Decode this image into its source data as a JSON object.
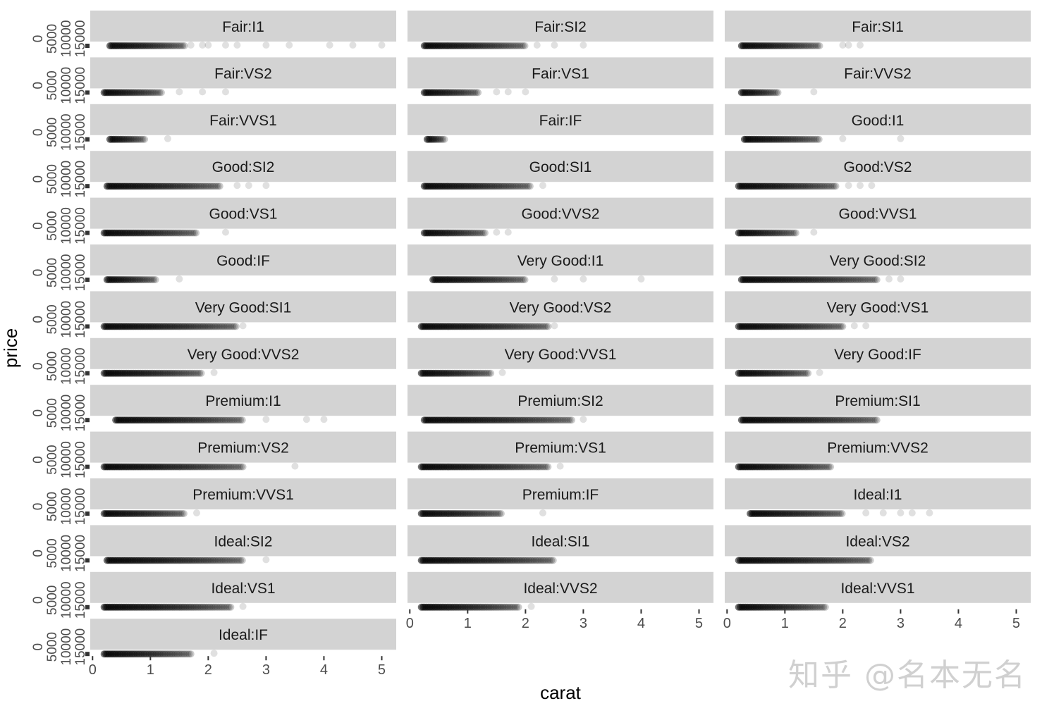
{
  "chart_data": {
    "type": "scatter",
    "facet": "cut:clarity",
    "ncol": 3,
    "xlabel": "carat",
    "ylabel": "price",
    "xlim": [
      -0.04,
      5.25
    ],
    "ylim": [
      0,
      19000
    ],
    "x_ticks": [
      "0",
      "1",
      "2",
      "3",
      "4",
      "5"
    ],
    "y_ticks": [
      "0",
      "5000",
      "10000",
      "15000"
    ],
    "point_color": "#000000",
    "strip_fill": "#d3d3d3",
    "grid": false,
    "panels": [
      {
        "label": "Fair:I1",
        "carat_range": [
          0.3,
          1.6
        ],
        "outliers": [
          1.7,
          1.9,
          2.0,
          2.3,
          2.5,
          3.0,
          3.4,
          4.1,
          4.5,
          5.0
        ]
      },
      {
        "label": "Fair:SI2",
        "carat_range": [
          0.25,
          2.0
        ],
        "outliers": [
          2.2,
          2.5,
          3.0
        ]
      },
      {
        "label": "Fair:SI1",
        "carat_range": [
          0.25,
          1.6
        ],
        "outliers": [
          2.0,
          2.1,
          2.3
        ]
      },
      {
        "label": "Fair:VS2",
        "carat_range": [
          0.2,
          1.2
        ],
        "outliers": [
          1.5,
          1.9,
          2.3
        ]
      },
      {
        "label": "Fair:VS1",
        "carat_range": [
          0.25,
          1.2
        ],
        "outliers": [
          1.5,
          1.7,
          2.0
        ]
      },
      {
        "label": "Fair:VVS2",
        "carat_range": [
          0.25,
          0.9
        ],
        "outliers": [
          1.5
        ]
      },
      {
        "label": "Fair:VVS1",
        "carat_range": [
          0.3,
          0.9
        ],
        "outliers": [
          1.3
        ]
      },
      {
        "label": "Fair:IF",
        "carat_range": [
          0.3,
          0.6
        ],
        "outliers": []
      },
      {
        "label": "Good:I1",
        "carat_range": [
          0.3,
          1.6
        ],
        "outliers": [
          2.0,
          3.0
        ]
      },
      {
        "label": "Good:SI2",
        "carat_range": [
          0.25,
          2.2
        ],
        "outliers": [
          2.5,
          2.7,
          3.0
        ]
      },
      {
        "label": "Good:SI1",
        "carat_range": [
          0.25,
          2.1
        ],
        "outliers": [
          2.3
        ]
      },
      {
        "label": "Good:VS2",
        "carat_range": [
          0.2,
          1.9
        ],
        "outliers": [
          2.1,
          2.3,
          2.5
        ]
      },
      {
        "label": "Good:VS1",
        "carat_range": [
          0.2,
          1.8
        ],
        "outliers": [
          2.3
        ]
      },
      {
        "label": "Good:VVS2",
        "carat_range": [
          0.25,
          1.3
        ],
        "outliers": [
          1.5,
          1.7
        ]
      },
      {
        "label": "Good:VVS1",
        "carat_range": [
          0.2,
          1.2
        ],
        "outliers": [
          1.5
        ]
      },
      {
        "label": "Good:IF",
        "carat_range": [
          0.25,
          1.1
        ],
        "outliers": [
          1.5
        ]
      },
      {
        "label": "Very Good:I1",
        "carat_range": [
          0.4,
          2.0
        ],
        "outliers": [
          2.5,
          3.0,
          4.0
        ]
      },
      {
        "label": "Very Good:SI2",
        "carat_range": [
          0.25,
          2.6
        ],
        "outliers": [
          2.8,
          3.0
        ]
      },
      {
        "label": "Very Good:SI1",
        "carat_range": [
          0.2,
          2.5
        ],
        "outliers": [
          2.6
        ]
      },
      {
        "label": "Very Good:VS2",
        "carat_range": [
          0.2,
          2.4
        ],
        "outliers": [
          2.5
        ]
      },
      {
        "label": "Very Good:VS1",
        "carat_range": [
          0.2,
          2.0
        ],
        "outliers": [
          2.2,
          2.4
        ]
      },
      {
        "label": "Very Good:VVS2",
        "carat_range": [
          0.2,
          1.9
        ],
        "outliers": [
          2.1
        ]
      },
      {
        "label": "Very Good:VVS1",
        "carat_range": [
          0.2,
          1.4
        ],
        "outliers": [
          1.6
        ]
      },
      {
        "label": "Very Good:IF",
        "carat_range": [
          0.2,
          1.4
        ],
        "outliers": [
          1.6
        ]
      },
      {
        "label": "Premium:I1",
        "carat_range": [
          0.4,
          2.6
        ],
        "outliers": [
          3.0,
          3.7,
          4.0
        ]
      },
      {
        "label": "Premium:SI2",
        "carat_range": [
          0.25,
          2.8
        ],
        "outliers": [
          3.0
        ]
      },
      {
        "label": "Premium:SI1",
        "carat_range": [
          0.25,
          2.6
        ],
        "outliers": []
      },
      {
        "label": "Premium:VS2",
        "carat_range": [
          0.2,
          2.6
        ],
        "outliers": [
          3.5
        ]
      },
      {
        "label": "Premium:VS1",
        "carat_range": [
          0.2,
          2.4
        ],
        "outliers": [
          2.6
        ]
      },
      {
        "label": "Premium:VVS2",
        "carat_range": [
          0.2,
          1.8
        ],
        "outliers": []
      },
      {
        "label": "Premium:VVS1",
        "carat_range": [
          0.2,
          1.6
        ],
        "outliers": [
          1.8
        ]
      },
      {
        "label": "Premium:IF",
        "carat_range": [
          0.2,
          1.6
        ],
        "outliers": [
          2.3
        ]
      },
      {
        "label": "Ideal:I1",
        "carat_range": [
          0.4,
          2.0
        ],
        "outliers": [
          2.4,
          2.7,
          3.0,
          3.2,
          3.5
        ]
      },
      {
        "label": "Ideal:SI2",
        "carat_range": [
          0.25,
          2.6
        ],
        "outliers": [
          3.0
        ]
      },
      {
        "label": "Ideal:SI1",
        "carat_range": [
          0.2,
          2.5
        ],
        "outliers": []
      },
      {
        "label": "Ideal:VS2",
        "carat_range": [
          0.2,
          2.5
        ],
        "outliers": []
      },
      {
        "label": "Ideal:VS1",
        "carat_range": [
          0.2,
          2.4
        ],
        "outliers": [
          2.6
        ]
      },
      {
        "label": "Ideal:VVS2",
        "carat_range": [
          0.2,
          1.9
        ],
        "outliers": [
          2.1
        ]
      },
      {
        "label": "Ideal:VVS1",
        "carat_range": [
          0.2,
          1.7
        ],
        "outliers": []
      },
      {
        "label": "Ideal:IF",
        "carat_range": [
          0.2,
          1.7
        ],
        "outliers": [
          2.1
        ]
      }
    ]
  },
  "watermark": "知乎 @名本无名"
}
